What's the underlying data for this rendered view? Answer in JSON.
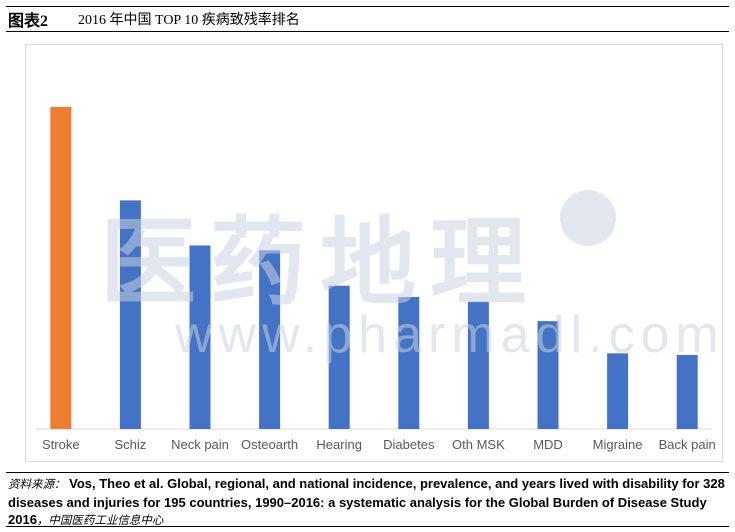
{
  "figure": {
    "label": "图表2",
    "title": "2016 年中国 TOP 10 疾病致残率排名"
  },
  "watermark": {
    "cn": "医药地理",
    "en": "www.pharmadl.com"
  },
  "source": {
    "label": "资料来源：",
    "text": "Vos, Theo et al. Global, regional, and national incidence, prevalence, and years lived with disability for 328 diseases and injuries for 195 countries, 1990–2016: a systematic analysis for the Global Burden of Disease Study 2016",
    "org": "，中国医药工业信息中心"
  },
  "colors": {
    "highlight": "#ED7D31",
    "bar": "#4472C4",
    "axis": "#d9d9d9",
    "tick_text": "#595959"
  },
  "chart_data": {
    "type": "bar",
    "categories": [
      "Stroke",
      "Schiz",
      "Neck pain",
      "Osteoarth",
      "Hearing",
      "Diabetes",
      "Oth MSK",
      "MDD",
      "Migraine",
      "Back pain"
    ],
    "values": [
      100,
      71,
      57,
      55.5,
      44.5,
      41,
      39.5,
      33.5,
      23.5,
      23
    ],
    "highlight_index": 0,
    "ylim": [
      0,
      100
    ],
    "value_axis_visible": false,
    "grid": false,
    "legend": "none"
  }
}
